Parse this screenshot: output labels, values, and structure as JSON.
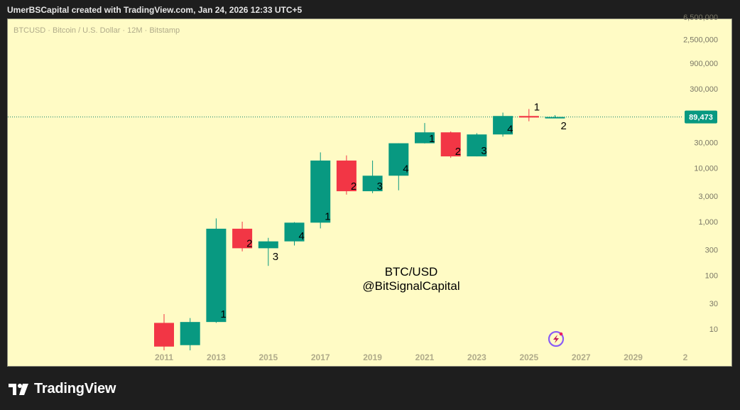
{
  "header": {
    "author": "UmerBSCapital",
    "created_text": "UmerBSCapital created with TradingView.com, Jan 24, 2026 12:33 UTC+5"
  },
  "footer": {
    "brand": "TradingView"
  },
  "chart_data": {
    "type": "candlestick",
    "symbol_line": "BTCUSD · Bitcoin / U.S. Dollar · 12M · Bitstamp",
    "watermark": [
      "BTC/USD",
      "@BitSignalCapital"
    ],
    "scale": "log",
    "yticks": [
      "6,500,000",
      "2,500,000",
      "900,000",
      "300,000",
      "30,000",
      "10,000",
      "3,000",
      "1,000",
      "300",
      "100",
      "30",
      "10"
    ],
    "xticks": [
      "2011",
      "2013",
      "2015",
      "2017",
      "2019",
      "2021",
      "2023",
      "2025",
      "2027",
      "2029",
      "2"
    ],
    "last_price": "89,473",
    "colors": {
      "up": "#089981",
      "down": "#f23645",
      "background": "#fffbc5",
      "price_tag": "#089981",
      "cycle_label": "#000000"
    },
    "candles": [
      {
        "year": 2011,
        "open": 13,
        "high": 19,
        "low": 4,
        "close": 4.7
      },
      {
        "year": 2012,
        "open": 5,
        "high": 16,
        "low": 4,
        "close": 13.5
      },
      {
        "year": 2013,
        "open": 13.5,
        "high": 1150,
        "low": 13,
        "close": 740,
        "cycle": "1"
      },
      {
        "year": 2014,
        "open": 740,
        "high": 1000,
        "low": 280,
        "close": 320,
        "cycle": "2"
      },
      {
        "year": 2015,
        "open": 320,
        "high": 500,
        "low": 150,
        "close": 430,
        "cycle": "3"
      },
      {
        "year": 2016,
        "open": 430,
        "high": 980,
        "low": 360,
        "close": 960,
        "cycle": "4"
      },
      {
        "year": 2017,
        "open": 960,
        "high": 19600,
        "low": 750,
        "close": 13800,
        "cycle": "1"
      },
      {
        "year": 2018,
        "open": 13800,
        "high": 17200,
        "low": 3200,
        "close": 3700,
        "cycle": "2"
      },
      {
        "year": 2019,
        "open": 3700,
        "high": 13800,
        "low": 3400,
        "close": 7200,
        "cycle": "3"
      },
      {
        "year": 2020,
        "open": 7200,
        "high": 29000,
        "low": 3850,
        "close": 29000,
        "cycle": "4"
      },
      {
        "year": 2021,
        "open": 29000,
        "high": 69000,
        "low": 28800,
        "close": 46300,
        "cycle": "1"
      },
      {
        "year": 2022,
        "open": 46300,
        "high": 48200,
        "low": 15500,
        "close": 16500,
        "cycle": "2"
      },
      {
        "year": 2023,
        "open": 16500,
        "high": 44700,
        "low": 16500,
        "close": 42300,
        "cycle": "3"
      },
      {
        "year": 2024,
        "open": 42300,
        "high": 108000,
        "low": 38500,
        "close": 93400,
        "cycle": "4"
      },
      {
        "year": 2025,
        "open": 93400,
        "high": 126000,
        "low": 74500,
        "close": 87500,
        "cycle": "1"
      },
      {
        "year": 2026,
        "open": 87500,
        "high": 97000,
        "low": 86000,
        "close": 89473,
        "cycle": "2"
      }
    ]
  }
}
